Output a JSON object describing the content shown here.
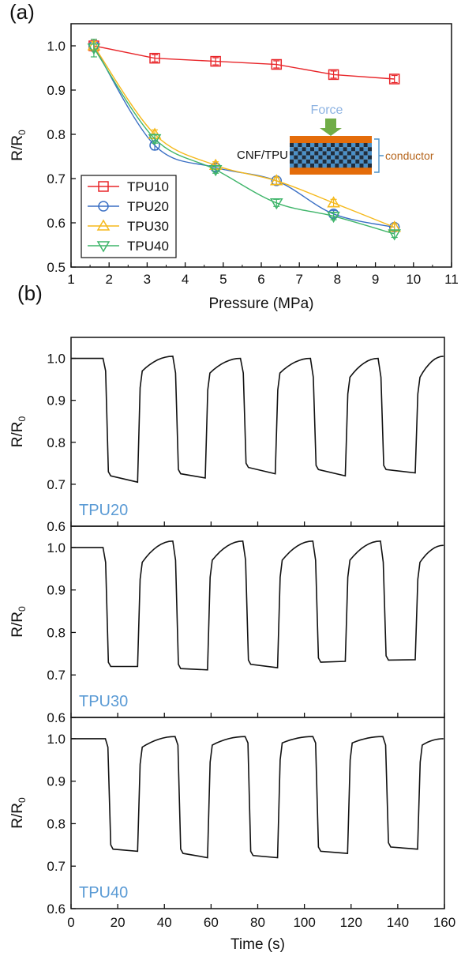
{
  "panel_labels": {
    "a": "(a)",
    "b": "(b)"
  },
  "inset": {
    "force_label": "Force",
    "material_label": "CNF/TPU",
    "conductor_label": "conductor",
    "colors": {
      "force": "#8db3e2",
      "arrow": "#70ad47",
      "electrode": "#e46c0a",
      "mesh_dark": "#1f2d3d",
      "mesh_light": "#4a90c8",
      "conductor_text": "#b5651d",
      "bracket": "#4a90c8"
    }
  },
  "chart_data": [
    {
      "type": "line",
      "panel": "(a)",
      "xlabel": "Pressure (MPa)",
      "ylabel": "R/R0",
      "xlim": [
        1,
        11
      ],
      "ylim": [
        0.5,
        1.05
      ],
      "xticks": [
        1,
        2,
        3,
        4,
        5,
        6,
        7,
        8,
        9,
        10,
        11
      ],
      "yticks": [
        0.5,
        0.6,
        0.7,
        0.8,
        0.9,
        1.0
      ],
      "ytick_labels": [
        "0.5",
        "0.6",
        "0.7",
        "0.8",
        "0.9",
        "1.0"
      ],
      "legend_position": "bottom-left",
      "series": [
        {
          "name": "TPU10",
          "marker": "square",
          "color": "#e8262a",
          "smooth": false,
          "x": [
            1.6,
            3.2,
            4.8,
            6.4,
            7.9,
            9.5
          ],
          "y": [
            1.0,
            0.972,
            0.965,
            0.958,
            0.935,
            0.925
          ],
          "err": [
            0.012,
            0.008,
            0.008,
            0.008,
            0.008,
            0.008
          ]
        },
        {
          "name": "TPU20",
          "marker": "circle",
          "color": "#3a6fc4",
          "smooth": true,
          "x": [
            1.6,
            3.2,
            4.8,
            6.4,
            7.9,
            9.5
          ],
          "y": [
            1.0,
            0.775,
            0.725,
            0.695,
            0.62,
            0.59
          ],
          "err": [
            0.01,
            0.01,
            0.008,
            0.008,
            0.008,
            0.008
          ]
        },
        {
          "name": "TPU30",
          "marker": "triangle-up",
          "color": "#f5b91c",
          "smooth": true,
          "x": [
            1.6,
            3.2,
            4.8,
            6.4,
            7.9,
            9.5
          ],
          "y": [
            1.0,
            0.8,
            0.73,
            0.695,
            0.645,
            0.59
          ],
          "err": [
            0.01,
            0.01,
            0.008,
            0.008,
            0.008,
            0.008
          ]
        },
        {
          "name": "TPU40",
          "marker": "triangle-down",
          "color": "#3fb56a",
          "smooth": true,
          "x": [
            1.6,
            3.2,
            4.8,
            6.4,
            7.9,
            9.5
          ],
          "y": [
            0.995,
            0.79,
            0.72,
            0.645,
            0.615,
            0.575
          ],
          "err": [
            0.02,
            0.01,
            0.008,
            0.008,
            0.008,
            0.008
          ]
        }
      ]
    },
    {
      "type": "line",
      "panel": "(b)",
      "shared_x": true,
      "xlabel": "Time (s)",
      "xlim": [
        0,
        160
      ],
      "xticks": [
        0,
        20,
        40,
        60,
        80,
        100,
        120,
        140,
        160
      ],
      "subplots": [
        {
          "name": "TPU20",
          "ylabel": "R/R0",
          "ylim": [
            0.6,
            1.05
          ],
          "yticks": [
            0.6,
            0.7,
            0.8,
            0.9,
            1.0
          ],
          "ytick_labels": [
            "0.6",
            "0.7",
            "0.8",
            "0.9",
            "1.0"
          ],
          "baseline": 1.0,
          "on_times": [
            14,
            44,
            73,
            103,
            132
          ],
          "low_start": [
            0.72,
            0.725,
            0.74,
            0.735,
            0.735
          ],
          "low_end": [
            0.705,
            0.715,
            0.725,
            0.72,
            0.727
          ],
          "high_start": [
            0.97,
            0.965,
            0.965,
            0.955,
            0.955
          ],
          "high_end": [
            1.005,
            1.0,
            1.0,
            1.0,
            1.005
          ],
          "step_times": [
            29,
            58,
            88,
            118,
            148
          ]
        },
        {
          "name": "TPU30",
          "ylabel": "R/R0",
          "ylim": [
            0.6,
            1.05
          ],
          "yticks": [
            0.6,
            0.7,
            0.8,
            0.9,
            1.0
          ],
          "ytick_labels": [
            "0.6",
            "0.7",
            "0.8",
            "0.9",
            "1.0"
          ],
          "baseline": 1.0,
          "on_times": [
            14,
            44,
            74,
            104,
            133
          ],
          "low_start": [
            0.72,
            0.715,
            0.725,
            0.73,
            0.735
          ],
          "low_end": [
            0.72,
            0.712,
            0.717,
            0.732,
            0.736
          ],
          "high_start": [
            0.965,
            0.97,
            0.97,
            0.97,
            0.965
          ],
          "high_end": [
            1.015,
            1.015,
            1.015,
            1.015,
            1.005
          ],
          "step_times": [
            29,
            59,
            89,
            118,
            148
          ]
        },
        {
          "name": "TPU40",
          "ylabel": "R/R0",
          "ylim": [
            0.6,
            1.05
          ],
          "yticks": [
            0.6,
            0.7,
            0.8,
            0.9,
            1.0
          ],
          "ytick_labels": [
            "0.6",
            "0.7",
            "0.8",
            "0.9",
            "1.0"
          ],
          "baseline": 1.0,
          "on_times": [
            15,
            45,
            75,
            104,
            134
          ],
          "low_start": [
            0.74,
            0.73,
            0.725,
            0.735,
            0.745
          ],
          "low_end": [
            0.735,
            0.72,
            0.72,
            0.73,
            0.74
          ],
          "high_start": [
            0.98,
            0.985,
            0.99,
            0.99,
            0.985
          ],
          "high_end": [
            1.005,
            1.005,
            1.005,
            1.005,
            1.0
          ],
          "step_times": [
            29,
            59,
            89,
            119,
            149
          ]
        }
      ]
    }
  ]
}
